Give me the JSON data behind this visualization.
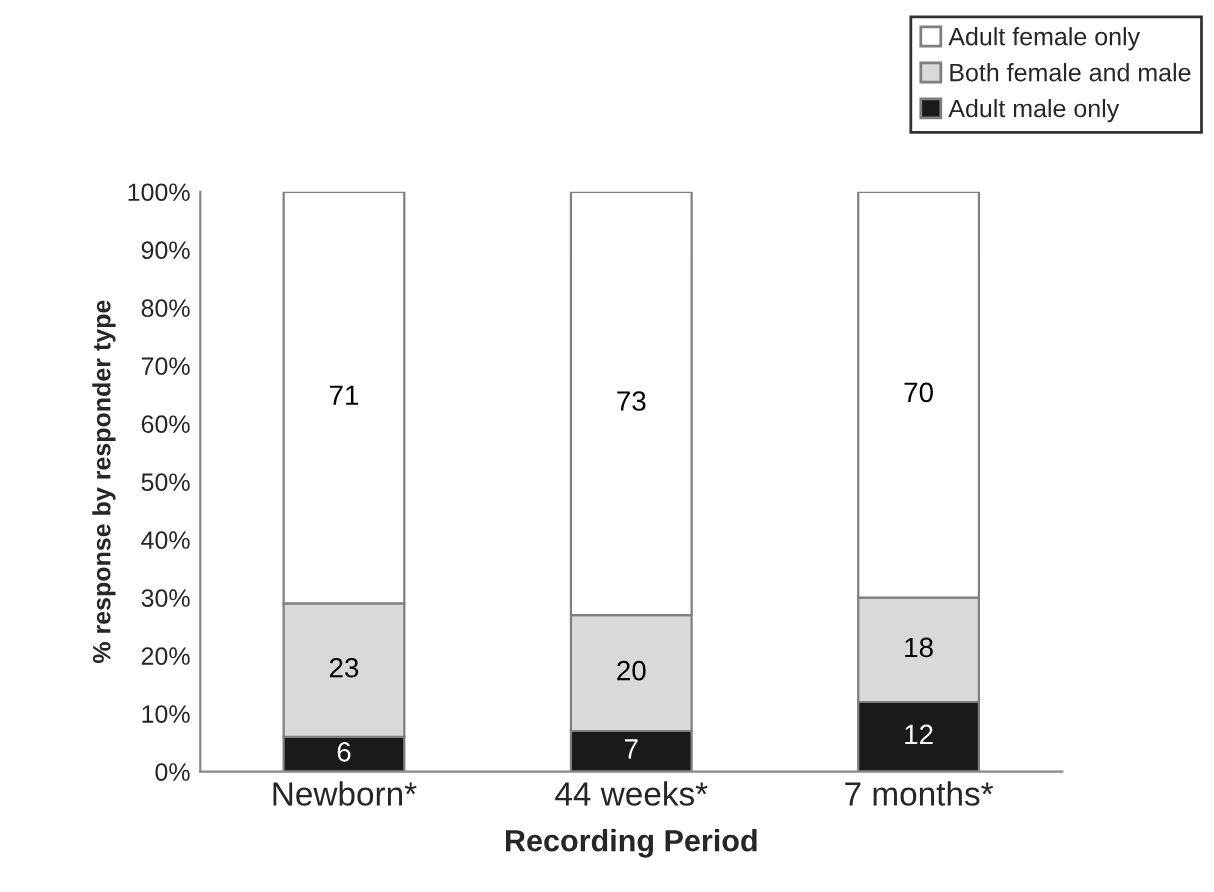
{
  "chart_data": {
    "type": "bar",
    "stacked": true,
    "xlabel": "Recording Period",
    "ylabel": "% response by responder type",
    "categories": [
      "Newborn*",
      "44 weeks*",
      "7 months*"
    ],
    "series": [
      {
        "name": "Adult male only",
        "color": "#1a1a1a",
        "values": [
          6,
          7,
          12
        ]
      },
      {
        "name": "Both female and male",
        "color": "#d9d9d9",
        "values": [
          23,
          20,
          18
        ]
      },
      {
        "name": "Adult female only",
        "color": "#ffffff",
        "values": [
          71,
          73,
          70
        ]
      }
    ],
    "ylim": [
      0,
      100
    ],
    "yticks": [
      {
        "value": 0,
        "label": "0%"
      },
      {
        "value": 10,
        "label": "10%"
      },
      {
        "value": 20,
        "label": "20%"
      },
      {
        "value": 30,
        "label": "30%"
      },
      {
        "value": 40,
        "label": "40%"
      },
      {
        "value": 50,
        "label": "50%"
      },
      {
        "value": 60,
        "label": "60%"
      },
      {
        "value": 70,
        "label": "70%"
      },
      {
        "value": 80,
        "label": "80%"
      },
      {
        "value": 90,
        "label": "90%"
      },
      {
        "value": 100,
        "label": "100%"
      }
    ],
    "data_labels": true,
    "grid": false,
    "legend": "top right"
  }
}
